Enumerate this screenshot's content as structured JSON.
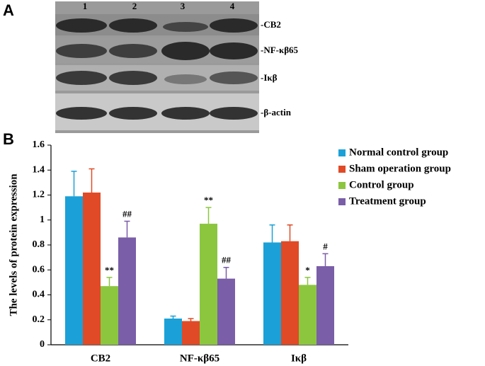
{
  "panels": [
    "A",
    "B"
  ],
  "blot": {
    "lanes": [
      "1",
      "2",
      "3",
      "4"
    ],
    "bands": [
      "-CB2",
      "-NF-κβ65",
      "-Iκβ",
      "-β-actin"
    ]
  },
  "chart_data": {
    "type": "bar",
    "y_label": "The levels of protein expression",
    "categories": [
      "CB2",
      "NF-κβ65",
      "Iκβ"
    ],
    "ylim": [
      0,
      1.6
    ],
    "yticks": [
      0,
      0.2,
      0.4,
      0.6,
      0.8,
      1,
      1.2,
      1.4,
      1.6
    ],
    "legend": "right",
    "series": [
      {
        "name": "Normal control group",
        "color": "#1ba1d7",
        "values": [
          1.19,
          0.21,
          0.82
        ],
        "errors": [
          0.2,
          0.02,
          0.14
        ],
        "annotations": [
          null,
          null,
          null
        ]
      },
      {
        "name": "Sham operation group",
        "color": "#e04a26",
        "values": [
          1.22,
          0.19,
          0.83
        ],
        "errors": [
          0.19,
          0.02,
          0.13
        ],
        "annotations": [
          null,
          null,
          null
        ]
      },
      {
        "name": "Control group",
        "color": "#8cc63f",
        "values": [
          0.47,
          0.97,
          0.48
        ],
        "errors": [
          0.07,
          0.13,
          0.06
        ],
        "annotations": [
          "**",
          "**",
          "*"
        ]
      },
      {
        "name": "Treatment group",
        "color": "#7a5ea8",
        "values": [
          0.86,
          0.53,
          0.63
        ],
        "errors": [
          0.13,
          0.09,
          0.1
        ],
        "annotations": [
          "##",
          "##",
          "#"
        ]
      }
    ]
  }
}
